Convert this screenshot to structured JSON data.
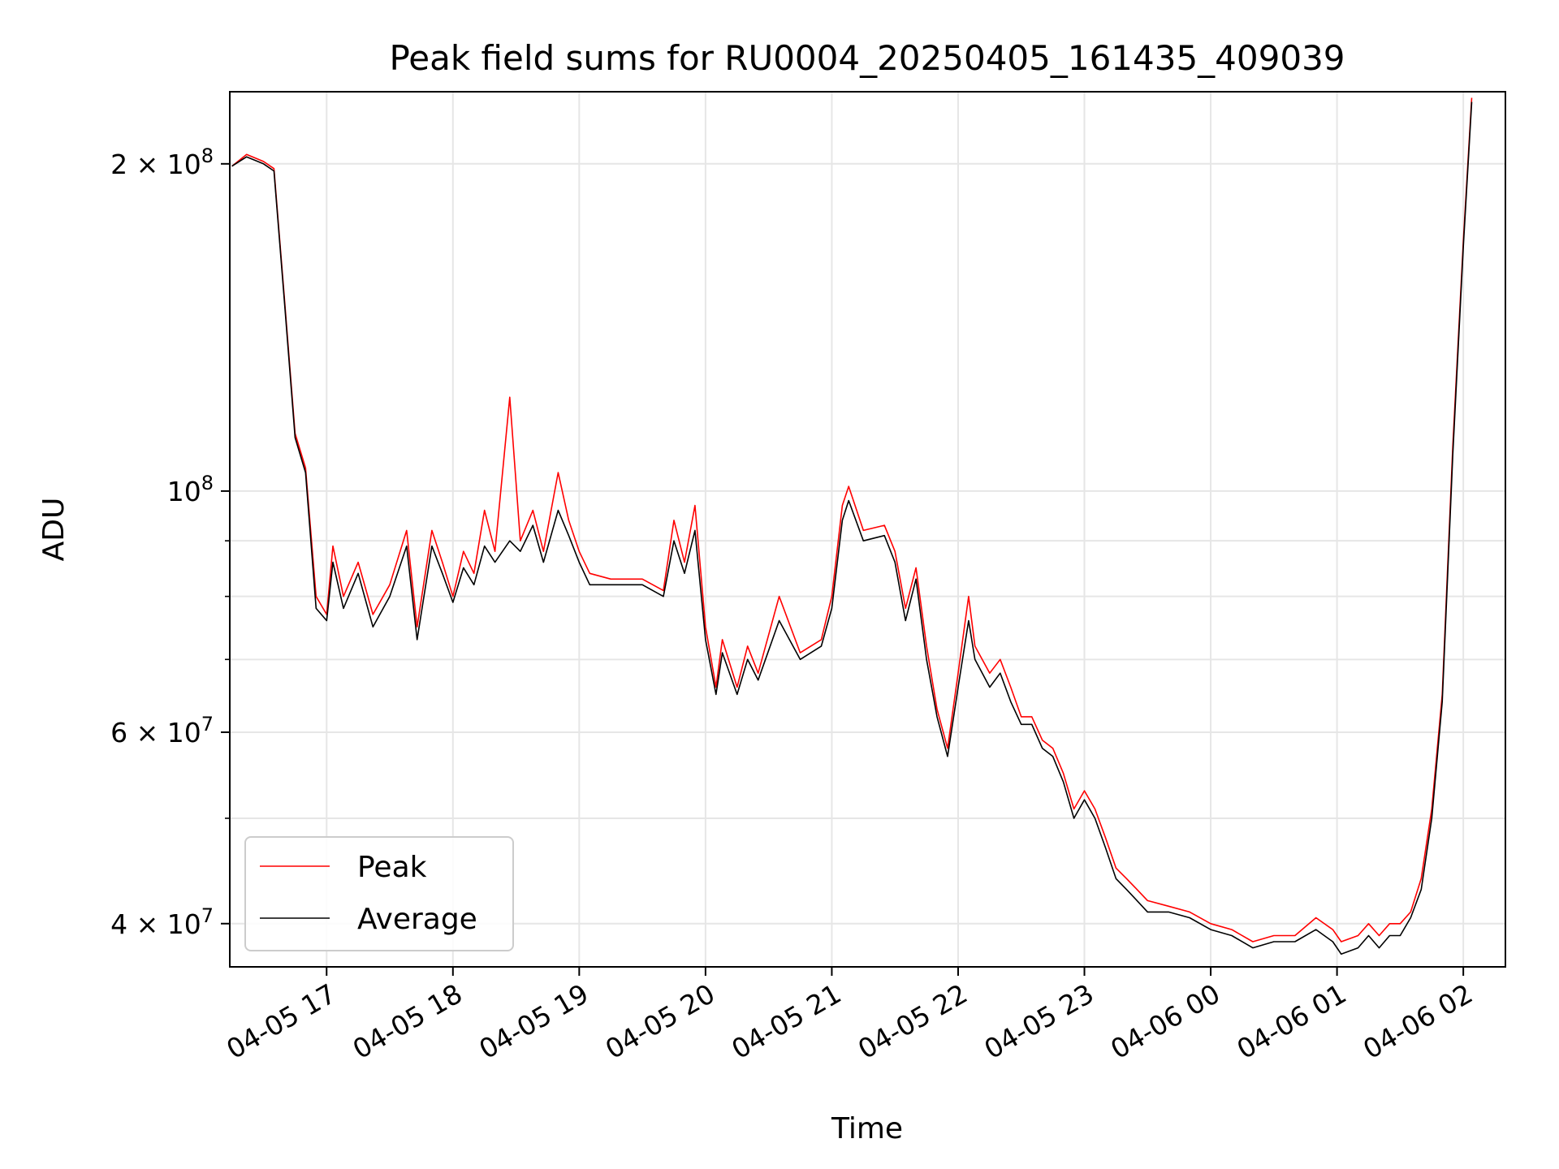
{
  "chart_data": {
    "type": "line",
    "title": "Peak field sums for RU0004_20250405_161435_409039",
    "xlabel": "Time",
    "ylabel": "ADU",
    "yscale": "log",
    "ylim": [
      36500000,
      233000000
    ],
    "xlim": [
      "2025-04-05 16:14",
      "2025-04-06 02:20"
    ],
    "x_ticks": [
      "04-05 17",
      "04-05 18",
      "04-05 19",
      "04-05 20",
      "04-05 21",
      "04-05 22",
      "04-05 23",
      "04-06 00",
      "04-06 01",
      "04-06 02"
    ],
    "y_ticks": [
      {
        "value": 200000000,
        "mantissa": "2",
        "exp": "8"
      },
      {
        "value": 100000000,
        "mantissa": "",
        "exp": "8"
      },
      {
        "value": 60000000,
        "mantissa": "6",
        "exp": "7"
      },
      {
        "value": 40000000,
        "mantissa": "4",
        "exp": "7"
      }
    ],
    "y_minor_ticks": [
      50000000,
      70000000,
      80000000,
      90000000
    ],
    "grid": true,
    "legend_position": "lower-left",
    "series": [
      {
        "name": "Peak",
        "color": "#ff0000",
        "points": [
          [
            "2025-04-05 16:15",
            199000000
          ],
          [
            "2025-04-05 16:22",
            204000000
          ],
          [
            "2025-04-05 16:30",
            201000000
          ],
          [
            "2025-04-05 16:35",
            198000000
          ],
          [
            "2025-04-05 16:40",
            150000000
          ],
          [
            "2025-04-05 16:45",
            113000000
          ],
          [
            "2025-04-05 16:50",
            105000000
          ],
          [
            "2025-04-05 16:55",
            80000000
          ],
          [
            "2025-04-05 17:00",
            77000000
          ],
          [
            "2025-04-05 17:03",
            89000000
          ],
          [
            "2025-04-05 17:08",
            80000000
          ],
          [
            "2025-04-05 17:15",
            86000000
          ],
          [
            "2025-04-05 17:22",
            77000000
          ],
          [
            "2025-04-05 17:30",
            82000000
          ],
          [
            "2025-04-05 17:38",
            92000000
          ],
          [
            "2025-04-05 17:43",
            75000000
          ],
          [
            "2025-04-05 17:50",
            92000000
          ],
          [
            "2025-04-05 17:55",
            86000000
          ],
          [
            "2025-04-05 18:00",
            80000000
          ],
          [
            "2025-04-05 18:05",
            88000000
          ],
          [
            "2025-04-05 18:10",
            84000000
          ],
          [
            "2025-04-05 18:15",
            96000000
          ],
          [
            "2025-04-05 18:20",
            88000000
          ],
          [
            "2025-04-05 18:27",
            122000000
          ],
          [
            "2025-04-05 18:32",
            90000000
          ],
          [
            "2025-04-05 18:38",
            96000000
          ],
          [
            "2025-04-05 18:43",
            88000000
          ],
          [
            "2025-04-05 18:50",
            104000000
          ],
          [
            "2025-04-05 18:55",
            94000000
          ],
          [
            "2025-04-05 19:00",
            88000000
          ],
          [
            "2025-04-05 19:05",
            84000000
          ],
          [
            "2025-04-05 19:15",
            83000000
          ],
          [
            "2025-04-05 19:30",
            83000000
          ],
          [
            "2025-04-05 19:40",
            81000000
          ],
          [
            "2025-04-05 19:45",
            94000000
          ],
          [
            "2025-04-05 19:50",
            86000000
          ],
          [
            "2025-04-05 19:55",
            97000000
          ],
          [
            "2025-04-05 20:00",
            75000000
          ],
          [
            "2025-04-05 20:05",
            66000000
          ],
          [
            "2025-04-05 20:08",
            73000000
          ],
          [
            "2025-04-05 20:15",
            66000000
          ],
          [
            "2025-04-05 20:20",
            72000000
          ],
          [
            "2025-04-05 20:25",
            68000000
          ],
          [
            "2025-04-05 20:35",
            80000000
          ],
          [
            "2025-04-05 20:45",
            71000000
          ],
          [
            "2025-04-05 20:55",
            73000000
          ],
          [
            "2025-04-05 21:00",
            80000000
          ],
          [
            "2025-04-05 21:05",
            97000000
          ],
          [
            "2025-04-05 21:08",
            101000000
          ],
          [
            "2025-04-05 21:15",
            92000000
          ],
          [
            "2025-04-05 21:25",
            93000000
          ],
          [
            "2025-04-05 21:30",
            88000000
          ],
          [
            "2025-04-05 21:35",
            78000000
          ],
          [
            "2025-04-05 21:40",
            85000000
          ],
          [
            "2025-04-05 21:45",
            72000000
          ],
          [
            "2025-04-05 21:50",
            63000000
          ],
          [
            "2025-04-05 21:55",
            58000000
          ],
          [
            "2025-04-05 22:00",
            68000000
          ],
          [
            "2025-04-05 22:05",
            80000000
          ],
          [
            "2025-04-05 22:08",
            72000000
          ],
          [
            "2025-04-05 22:15",
            68000000
          ],
          [
            "2025-04-05 22:20",
            70000000
          ],
          [
            "2025-04-05 22:25",
            66000000
          ],
          [
            "2025-04-05 22:30",
            62000000
          ],
          [
            "2025-04-05 22:35",
            62000000
          ],
          [
            "2025-04-05 22:40",
            59000000
          ],
          [
            "2025-04-05 22:45",
            58000000
          ],
          [
            "2025-04-05 22:50",
            55000000
          ],
          [
            "2025-04-05 22:55",
            51000000
          ],
          [
            "2025-04-05 23:00",
            53000000
          ],
          [
            "2025-04-05 23:05",
            51000000
          ],
          [
            "2025-04-05 23:10",
            48000000
          ],
          [
            "2025-04-05 23:15",
            45000000
          ],
          [
            "2025-04-05 23:20",
            44000000
          ],
          [
            "2025-04-05 23:25",
            43000000
          ],
          [
            "2025-04-05 23:30",
            42000000
          ],
          [
            "2025-04-05 23:40",
            41500000
          ],
          [
            "2025-04-05 23:50",
            41000000
          ],
          [
            "2025-04-06 00:00",
            40000000
          ],
          [
            "2025-04-06 00:10",
            39500000
          ],
          [
            "2025-04-06 00:20",
            38500000
          ],
          [
            "2025-04-06 00:30",
            39000000
          ],
          [
            "2025-04-06 00:40",
            39000000
          ],
          [
            "2025-04-06 00:50",
            40500000
          ],
          [
            "2025-04-06 00:58",
            39500000
          ],
          [
            "2025-04-06 01:02",
            38500000
          ],
          [
            "2025-04-06 01:10",
            39000000
          ],
          [
            "2025-04-06 01:15",
            40000000
          ],
          [
            "2025-04-06 01:20",
            39000000
          ],
          [
            "2025-04-06 01:25",
            40000000
          ],
          [
            "2025-04-06 01:30",
            40000000
          ],
          [
            "2025-04-06 01:35",
            41000000
          ],
          [
            "2025-04-06 01:40",
            44000000
          ],
          [
            "2025-04-06 01:45",
            51000000
          ],
          [
            "2025-04-06 01:50",
            65000000
          ],
          [
            "2025-04-06 01:55",
            110000000
          ],
          [
            "2025-04-06 02:00",
            170000000
          ],
          [
            "2025-04-06 02:04",
            230000000
          ]
        ]
      },
      {
        "name": "Average",
        "color": "#000000",
        "points": [
          [
            "2025-04-05 16:15",
            199000000
          ],
          [
            "2025-04-05 16:22",
            203000000
          ],
          [
            "2025-04-05 16:30",
            200000000
          ],
          [
            "2025-04-05 16:35",
            197000000
          ],
          [
            "2025-04-05 16:40",
            149000000
          ],
          [
            "2025-04-05 16:45",
            112000000
          ],
          [
            "2025-04-05 16:50",
            104000000
          ],
          [
            "2025-04-05 16:55",
            78000000
          ],
          [
            "2025-04-05 17:00",
            76000000
          ],
          [
            "2025-04-05 17:03",
            86000000
          ],
          [
            "2025-04-05 17:08",
            78000000
          ],
          [
            "2025-04-05 17:15",
            84000000
          ],
          [
            "2025-04-05 17:22",
            75000000
          ],
          [
            "2025-04-05 17:30",
            80000000
          ],
          [
            "2025-04-05 17:38",
            89000000
          ],
          [
            "2025-04-05 17:43",
            73000000
          ],
          [
            "2025-04-05 17:50",
            89000000
          ],
          [
            "2025-04-05 17:55",
            84000000
          ],
          [
            "2025-04-05 18:00",
            79000000
          ],
          [
            "2025-04-05 18:05",
            85000000
          ],
          [
            "2025-04-05 18:10",
            82000000
          ],
          [
            "2025-04-05 18:15",
            89000000
          ],
          [
            "2025-04-05 18:20",
            86000000
          ],
          [
            "2025-04-05 18:27",
            90000000
          ],
          [
            "2025-04-05 18:32",
            88000000
          ],
          [
            "2025-04-05 18:38",
            93000000
          ],
          [
            "2025-04-05 18:43",
            86000000
          ],
          [
            "2025-04-05 18:50",
            96000000
          ],
          [
            "2025-04-05 18:55",
            91000000
          ],
          [
            "2025-04-05 19:00",
            86000000
          ],
          [
            "2025-04-05 19:05",
            82000000
          ],
          [
            "2025-04-05 19:15",
            82000000
          ],
          [
            "2025-04-05 19:30",
            82000000
          ],
          [
            "2025-04-05 19:40",
            80000000
          ],
          [
            "2025-04-05 19:45",
            90000000
          ],
          [
            "2025-04-05 19:50",
            84000000
          ],
          [
            "2025-04-05 19:55",
            92000000
          ],
          [
            "2025-04-05 20:00",
            73000000
          ],
          [
            "2025-04-05 20:05",
            65000000
          ],
          [
            "2025-04-05 20:08",
            71000000
          ],
          [
            "2025-04-05 20:15",
            65000000
          ],
          [
            "2025-04-05 20:20",
            70000000
          ],
          [
            "2025-04-05 20:25",
            67000000
          ],
          [
            "2025-04-05 20:35",
            76000000
          ],
          [
            "2025-04-05 20:45",
            70000000
          ],
          [
            "2025-04-05 20:55",
            72000000
          ],
          [
            "2025-04-05 21:00",
            78000000
          ],
          [
            "2025-04-05 21:05",
            94000000
          ],
          [
            "2025-04-05 21:08",
            98000000
          ],
          [
            "2025-04-05 21:15",
            90000000
          ],
          [
            "2025-04-05 21:25",
            91000000
          ],
          [
            "2025-04-05 21:30",
            86000000
          ],
          [
            "2025-04-05 21:35",
            76000000
          ],
          [
            "2025-04-05 21:40",
            83000000
          ],
          [
            "2025-04-05 21:45",
            70000000
          ],
          [
            "2025-04-05 21:50",
            62000000
          ],
          [
            "2025-04-05 21:55",
            57000000
          ],
          [
            "2025-04-05 22:00",
            66000000
          ],
          [
            "2025-04-05 22:05",
            76000000
          ],
          [
            "2025-04-05 22:08",
            70000000
          ],
          [
            "2025-04-05 22:15",
            66000000
          ],
          [
            "2025-04-05 22:20",
            68000000
          ],
          [
            "2025-04-05 22:25",
            64000000
          ],
          [
            "2025-04-05 22:30",
            61000000
          ],
          [
            "2025-04-05 22:35",
            61000000
          ],
          [
            "2025-04-05 22:40",
            58000000
          ],
          [
            "2025-04-05 22:45",
            57000000
          ],
          [
            "2025-04-05 22:50",
            54000000
          ],
          [
            "2025-04-05 22:55",
            50000000
          ],
          [
            "2025-04-05 23:00",
            52000000
          ],
          [
            "2025-04-05 23:05",
            50000000
          ],
          [
            "2025-04-05 23:10",
            47000000
          ],
          [
            "2025-04-05 23:15",
            44000000
          ],
          [
            "2025-04-05 23:20",
            43000000
          ],
          [
            "2025-04-05 23:25",
            42000000
          ],
          [
            "2025-04-05 23:30",
            41000000
          ],
          [
            "2025-04-05 23:40",
            41000000
          ],
          [
            "2025-04-05 23:50",
            40500000
          ],
          [
            "2025-04-06 00:00",
            39500000
          ],
          [
            "2025-04-06 00:10",
            39000000
          ],
          [
            "2025-04-06 00:20",
            38000000
          ],
          [
            "2025-04-06 00:30",
            38500000
          ],
          [
            "2025-04-06 00:40",
            38500000
          ],
          [
            "2025-04-06 00:50",
            39500000
          ],
          [
            "2025-04-06 00:58",
            38500000
          ],
          [
            "2025-04-06 01:02",
            37500000
          ],
          [
            "2025-04-06 01:10",
            38000000
          ],
          [
            "2025-04-06 01:15",
            39000000
          ],
          [
            "2025-04-06 01:20",
            38000000
          ],
          [
            "2025-04-06 01:25",
            39000000
          ],
          [
            "2025-04-06 01:30",
            39000000
          ],
          [
            "2025-04-06 01:35",
            40500000
          ],
          [
            "2025-04-06 01:40",
            43000000
          ],
          [
            "2025-04-06 01:45",
            50000000
          ],
          [
            "2025-04-06 01:50",
            64000000
          ],
          [
            "2025-04-06 01:55",
            108000000
          ],
          [
            "2025-04-06 02:00",
            168000000
          ],
          [
            "2025-04-06 02:04",
            228000000
          ]
        ]
      }
    ]
  }
}
